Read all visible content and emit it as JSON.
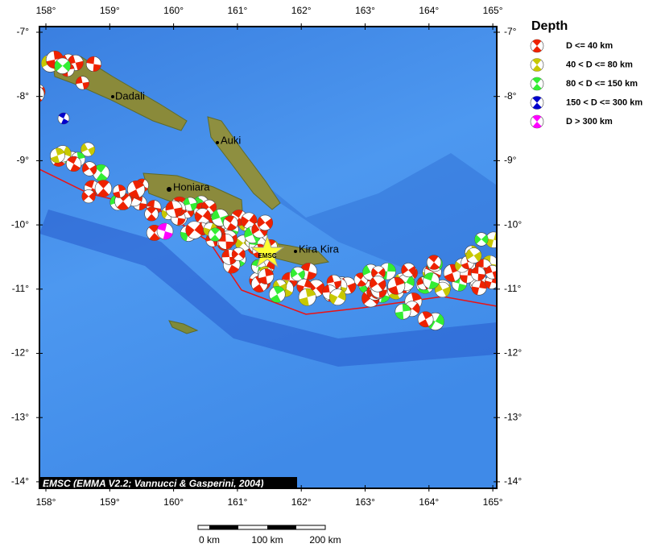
{
  "map": {
    "lon_ticks": [
      {
        "value": 158,
        "label": "158°"
      },
      {
        "value": 159,
        "label": "159°"
      },
      {
        "value": 160,
        "label": "160°"
      },
      {
        "value": 161,
        "label": "161°"
      },
      {
        "value": 162,
        "label": "162°"
      },
      {
        "value": 163,
        "label": "163°"
      },
      {
        "value": 164,
        "label": "164°"
      },
      {
        "value": 165,
        "label": "165°"
      }
    ],
    "lat_ticks": [
      {
        "value": -7,
        "label": "-7°"
      },
      {
        "value": -8,
        "label": "-8°"
      },
      {
        "value": -9,
        "label": "-9°"
      },
      {
        "value": -10,
        "label": "-10°"
      },
      {
        "value": -11,
        "label": "-11°"
      },
      {
        "value": -12,
        "label": "-12°"
      },
      {
        "value": -13,
        "label": "-13°"
      },
      {
        "value": -14,
        "label": "-14°"
      }
    ],
    "places": [
      "Dadali",
      "Auki",
      "Honiara",
      "Kira Kira"
    ],
    "epicenter_label": "EMSC",
    "credit": "EMSC (EMMA V2.2; Vannucci & Gasperini, 2004)",
    "scale_labels": [
      "0 km",
      "100 km",
      "200 km"
    ],
    "legend": {
      "title": "Depth",
      "entries": [
        {
          "name": "D <= 40 km",
          "color": "#ee2200"
        },
        {
          "name": "40 < D <= 80 km",
          "color": "#c8c800"
        },
        {
          "name": "80 < D <= 150 km",
          "color": "#33ee33"
        },
        {
          "name": "150 < D <= 300 km",
          "color": "#0000cc"
        },
        {
          "name": "D > 300 km",
          "color": "#ff00ff"
        }
      ]
    }
  }
}
